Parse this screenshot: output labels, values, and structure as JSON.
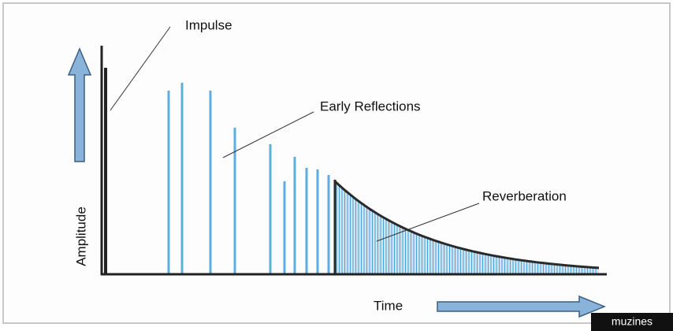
{
  "labels": {
    "impulse": "Impulse",
    "early_reflections": "Early Reflections",
    "reverberation": "Reverberation",
    "y_axis": "Amplitude",
    "x_axis": "Time"
  },
  "watermark": "muzines"
}
